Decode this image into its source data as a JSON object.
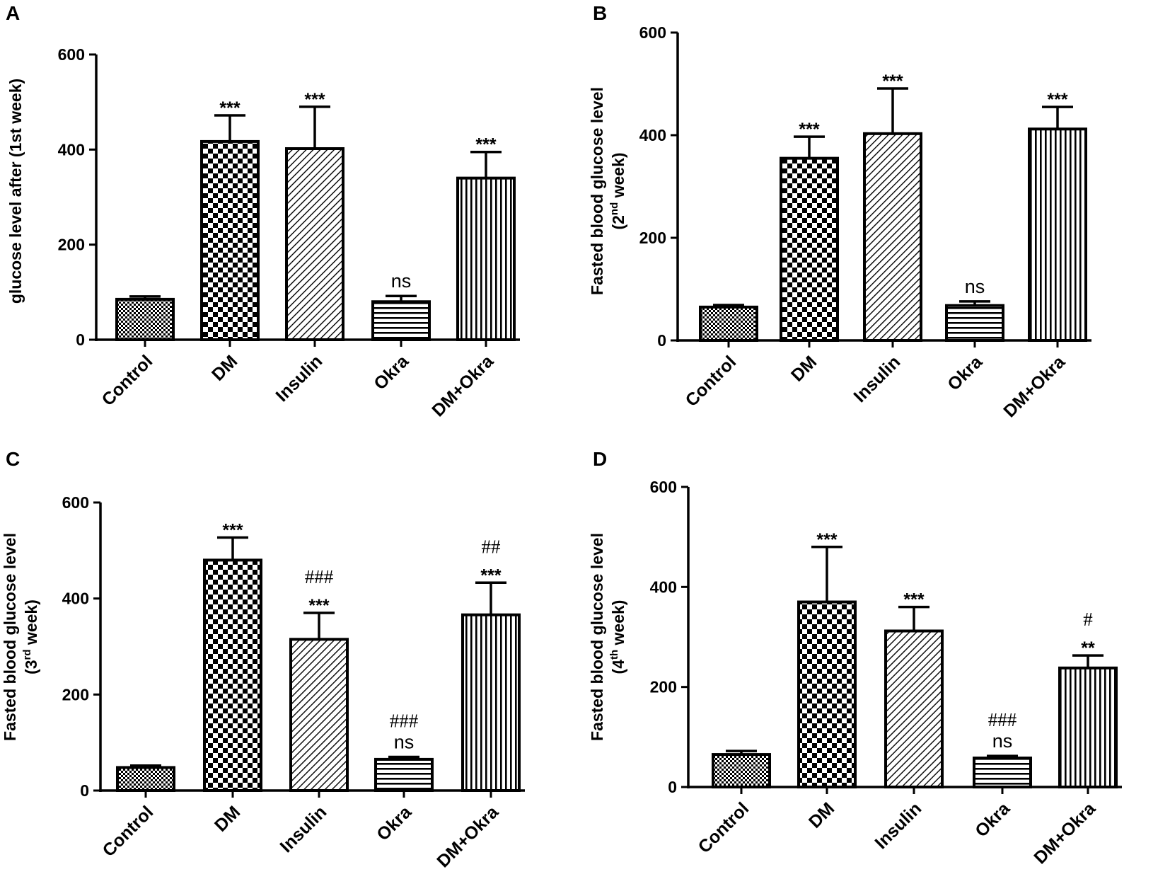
{
  "chart_data": [
    {
      "panel": "A",
      "type": "bar",
      "title": "",
      "ylabel_lines": [
        "glucose level after (1st week)"
      ],
      "ylabel_sup": "",
      "xlabel": "",
      "categories": [
        "Control",
        "DM",
        "Insulin",
        "Okra",
        "DM+Okra"
      ],
      "values": [
        85,
        417,
        402,
        80,
        340
      ],
      "errors": [
        6,
        55,
        88,
        12,
        55
      ],
      "annotations": [
        [],
        [
          "***"
        ],
        [
          "***"
        ],
        [
          "ns"
        ],
        [
          "***"
        ]
      ],
      "yticks": [
        0,
        200,
        400,
        600
      ],
      "ylim": [
        0,
        600
      ]
    },
    {
      "panel": "B",
      "type": "bar",
      "title": "",
      "ylabel_lines": [
        "Fasted blood glucose level",
        "(2nd week)"
      ],
      "ylabel_sup": "nd",
      "xlabel": "",
      "categories": [
        "Control",
        "DM",
        "Insulin",
        "Okra",
        "DM+Okra"
      ],
      "values": [
        65,
        355,
        403,
        68,
        412
      ],
      "errors": [
        4,
        42,
        88,
        8,
        43
      ],
      "annotations": [
        [],
        [
          "***"
        ],
        [
          "***"
        ],
        [
          "ns"
        ],
        [
          "***"
        ]
      ],
      "yticks": [
        0,
        200,
        400,
        600
      ],
      "ylim": [
        0,
        600
      ]
    },
    {
      "panel": "C",
      "type": "bar",
      "title": "",
      "ylabel_lines": [
        "Fasted blood glucose level",
        "(3rd week)"
      ],
      "ylabel_sup": "rd",
      "xlabel": "",
      "categories": [
        "Control",
        "DM",
        "Insulin",
        "Okra",
        "DM+Okra"
      ],
      "values": [
        48,
        480,
        315,
        65,
        366
      ],
      "errors": [
        4,
        47,
        55,
        5,
        67
      ],
      "annotations": [
        [],
        [
          "***"
        ],
        [
          "***",
          "###"
        ],
        [
          "ns",
          "###"
        ],
        [
          "***",
          "##"
        ]
      ],
      "yticks": [
        0,
        200,
        400,
        600
      ],
      "ylim": [
        0,
        600
      ]
    },
    {
      "panel": "D",
      "type": "bar",
      "title": "",
      "ylabel_lines": [
        "Fasted blood glucose level",
        "(4th week)"
      ],
      "ylabel_sup": "th",
      "xlabel": "",
      "categories": [
        "Control",
        "DM",
        "Insulin",
        "Okra",
        "DM+Okra"
      ],
      "values": [
        65,
        370,
        312,
        58,
        238
      ],
      "errors": [
        7,
        110,
        48,
        4,
        25
      ],
      "annotations": [
        [],
        [
          "***"
        ],
        [
          "***"
        ],
        [
          "ns",
          "###"
        ],
        [
          "**",
          "#"
        ]
      ],
      "yticks": [
        0,
        200,
        400,
        600
      ],
      "ylim": [
        0,
        600
      ]
    }
  ],
  "patterns": [
    "dense-checker",
    "checkerboard",
    "diagonal-lines",
    "horizontal-lines",
    "vertical-lines"
  ],
  "colors": {
    "ink": "#000000",
    "background": "#ffffff"
  }
}
